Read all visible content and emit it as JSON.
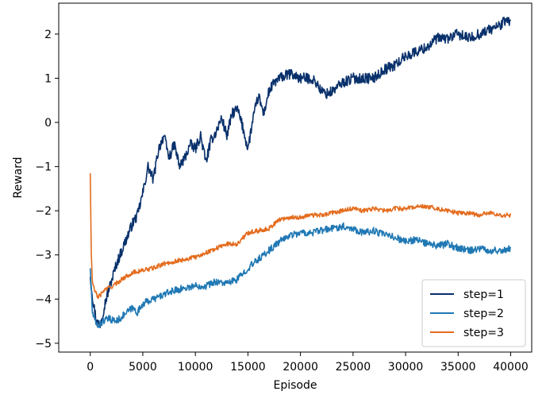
{
  "chart_data": {
    "type": "line",
    "title": "",
    "xlabel": "Episode",
    "ylabel": "Reward",
    "xlim": [
      -3000,
      42000
    ],
    "ylim": [
      -5.2,
      2.7
    ],
    "xticks": [
      0,
      5000,
      10000,
      15000,
      20000,
      25000,
      30000,
      35000,
      40000
    ],
    "xtick_labels": [
      "0",
      "5000",
      "10000",
      "15000",
      "20000",
      "25000",
      "30000",
      "35000",
      "40000"
    ],
    "yticks": [
      -5,
      -4,
      -3,
      -2,
      -1,
      0,
      1,
      2
    ],
    "ytick_labels": [
      "−5",
      "−4",
      "−3",
      "−2",
      "−1",
      "0",
      "1",
      "2"
    ],
    "grid": false,
    "legend_position": "lower-right",
    "series": [
      {
        "name": "step=1",
        "color": "#08306b",
        "noise": 0.12,
        "x": [
          0,
          300,
          600,
          900,
          1200,
          1500,
          2000,
          2500,
          3000,
          3500,
          4000,
          4500,
          5000,
          5500,
          6000,
          6500,
          7000,
          7500,
          8000,
          8500,
          9000,
          9500,
          10000,
          10500,
          11000,
          11500,
          12000,
          12500,
          13000,
          13500,
          14000,
          14500,
          15000,
          15500,
          16000,
          16500,
          17000,
          17500,
          18000,
          19000,
          20000,
          21000,
          21500,
          22000,
          22500,
          23000,
          23500,
          24000,
          25000,
          26000,
          27000,
          28000,
          29000,
          30000,
          31000,
          32000,
          33000,
          34000,
          35000,
          36000,
          37000,
          38000,
          39000,
          39500,
          40000
        ],
        "y": [
          -3.5,
          -4.1,
          -4.5,
          -4.6,
          -4.3,
          -4.0,
          -3.6,
          -3.2,
          -2.9,
          -2.6,
          -2.3,
          -2.1,
          -1.6,
          -1.0,
          -1.3,
          -0.6,
          -0.3,
          -0.8,
          -0.5,
          -1.0,
          -0.8,
          -0.5,
          -0.6,
          -0.3,
          -0.9,
          -0.4,
          -0.2,
          0.1,
          -0.3,
          0.2,
          0.3,
          -0.1,
          -0.6,
          0.1,
          0.6,
          0.2,
          0.7,
          0.9,
          1.0,
          1.1,
          1.0,
          1.0,
          0.9,
          0.7,
          0.65,
          0.7,
          0.8,
          0.9,
          1.0,
          1.0,
          1.0,
          1.2,
          1.3,
          1.5,
          1.6,
          1.7,
          1.9,
          1.9,
          2.0,
          1.9,
          2.0,
          2.1,
          2.2,
          2.3,
          2.3
        ]
      },
      {
        "name": "step=2",
        "color": "#1f78b4",
        "noise": 0.08,
        "x": [
          0,
          200,
          500,
          800,
          1200,
          1800,
          2500,
          3000,
          3500,
          4000,
          4500,
          5000,
          6000,
          7000,
          8000,
          9000,
          10000,
          11000,
          12000,
          13000,
          14000,
          15000,
          16000,
          17000,
          18000,
          19000,
          20000,
          21000,
          22000,
          23000,
          24000,
          25000,
          26000,
          27000,
          28000,
          29000,
          30000,
          31000,
          32000,
          33000,
          34000,
          35000,
          36000,
          37000,
          38000,
          39000,
          40000
        ],
        "y": [
          -3.3,
          -4.3,
          -4.55,
          -4.6,
          -4.5,
          -4.45,
          -4.5,
          -4.4,
          -4.3,
          -4.2,
          -4.3,
          -4.1,
          -4.0,
          -3.9,
          -3.8,
          -3.75,
          -3.7,
          -3.7,
          -3.6,
          -3.65,
          -3.55,
          -3.3,
          -3.1,
          -2.9,
          -2.7,
          -2.55,
          -2.5,
          -2.5,
          -2.45,
          -2.4,
          -2.35,
          -2.4,
          -2.5,
          -2.45,
          -2.55,
          -2.6,
          -2.7,
          -2.65,
          -2.75,
          -2.8,
          -2.75,
          -2.85,
          -2.9,
          -2.85,
          -2.9,
          -2.9,
          -2.85
        ]
      },
      {
        "name": "step=3",
        "color": "#e46c1e",
        "noise": 0.05,
        "x": [
          0,
          100,
          200,
          400,
          700,
          1000,
          1300,
          1700,
          2200,
          3000,
          4000,
          5000,
          6000,
          7000,
          8000,
          9000,
          10000,
          11000,
          12000,
          13000,
          14000,
          15000,
          16000,
          17000,
          18000,
          19000,
          20000,
          21000,
          22000,
          23000,
          24000,
          25000,
          26000,
          27000,
          28000,
          29000,
          30000,
          31000,
          32000,
          33000,
          34000,
          35000,
          36000,
          37000,
          38000,
          39000,
          40000
        ],
        "y": [
          -1.15,
          -3.0,
          -3.6,
          -3.8,
          -3.95,
          -3.9,
          -3.8,
          -3.75,
          -3.7,
          -3.55,
          -3.4,
          -3.35,
          -3.3,
          -3.2,
          -3.15,
          -3.1,
          -3.05,
          -2.95,
          -2.85,
          -2.75,
          -2.75,
          -2.5,
          -2.45,
          -2.4,
          -2.2,
          -2.15,
          -2.15,
          -2.1,
          -2.1,
          -2.05,
          -2.0,
          -1.95,
          -2.0,
          -1.95,
          -2.0,
          -1.95,
          -1.95,
          -1.9,
          -1.9,
          -1.95,
          -2.0,
          -2.05,
          -2.05,
          -2.1,
          -2.05,
          -2.1,
          -2.1
        ]
      }
    ]
  }
}
